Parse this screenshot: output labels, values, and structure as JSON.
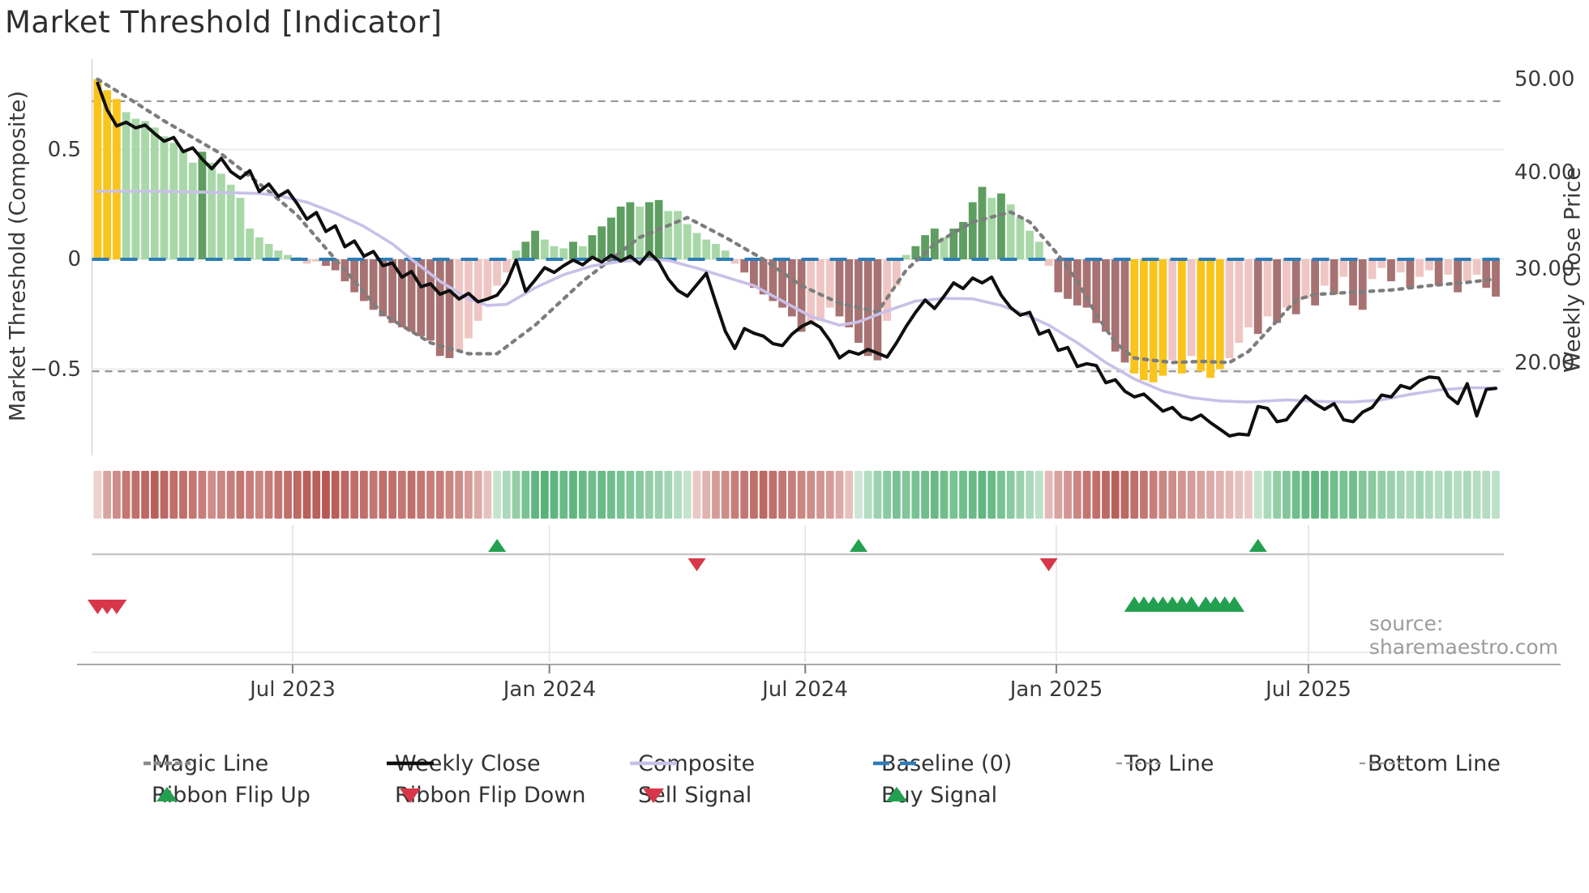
{
  "title": "Market Threshold [Indicator]",
  "source": "source: sharemaestro.com",
  "colors": {
    "bar_gold": "#FAC41B",
    "bar_green_light": "#A9D8A8",
    "bar_green_dark": "#5F9E61",
    "bar_red_light": "#EFC6C3",
    "bar_red_dark": "#A87272",
    "weekly_close": "#0f0f0f",
    "composite_line": "#C9C0E8",
    "magic_line": "#7d7d7d",
    "baseline": "#2E7DB6",
    "threshold_dash": "#999999",
    "grid": "#ebebeb",
    "spine": "#d6d6d6",
    "flip_line": "#c8c8c8",
    "separator": "#e6e6e6",
    "axis_line": "#a9a9a9",
    "signal_grid": "#e4e4e4",
    "marker_green": "#22A050",
    "marker_red": "#D8374A",
    "ribbon_red_light": "#F7E7E5",
    "ribbon_red_dark": "#B3514C",
    "ribbon_green_light": "#E6F4E8",
    "ribbon_green_dark": "#3FA766"
  },
  "axes": {
    "left": {
      "title": "Market Threshold (Composite)",
      "ticks": [
        {
          "value": 0.5,
          "label": "0.5"
        },
        {
          "value": 0.0,
          "label": "0"
        },
        {
          "value": -0.5,
          "label": "−0.5"
        }
      ]
    },
    "right": {
      "title": "Weekly Close Price",
      "ticks": [
        {
          "value": 50,
          "label": "50.00"
        },
        {
          "value": 40,
          "label": "40.00"
        },
        {
          "value": 30,
          "label": "30.00"
        },
        {
          "value": 20,
          "label": "20.00"
        }
      ]
    },
    "x": {
      "ticks": [
        {
          "i": 20.5,
          "label": "Jul 2023"
        },
        {
          "i": 47.5,
          "label": "Jan 2024"
        },
        {
          "i": 74.4,
          "label": "Jul 2024"
        },
        {
          "i": 100.8,
          "label": "Jan 2025"
        },
        {
          "i": 127.3,
          "label": "Jul 2025"
        }
      ]
    }
  },
  "chart_data": {
    "type": "bar+line composite indicator panel",
    "x_unit": "week index (0 = first bar, ~Feb 2023; 148 weekly bars to ~Nov 2025)",
    "left_ylim": [
      -0.92,
      0.92
    ],
    "right_ylim_prices": [
      50,
      20
    ],
    "baseline": 0,
    "top_line": 0.72,
    "bottom_line": -0.51,
    "gold_above": 0.72,
    "gold_below": -0.49,
    "composite_histogram": [
      0.82,
      0.77,
      0.73,
      0.67,
      0.64,
      0.63,
      0.6,
      0.56,
      0.53,
      0.5,
      0.44,
      0.49,
      0.44,
      0.39,
      0.34,
      0.28,
      0.14,
      0.1,
      0.07,
      0.04,
      0.02,
      0.01,
      -0.02,
      -0.01,
      -0.03,
      -0.05,
      -0.1,
      -0.15,
      -0.19,
      -0.23,
      -0.26,
      -0.29,
      -0.31,
      -0.33,
      -0.35,
      -0.37,
      -0.44,
      -0.45,
      -0.42,
      -0.36,
      -0.28,
      -0.18,
      -0.12,
      -0.06,
      0.04,
      0.08,
      0.13,
      0.09,
      0.06,
      0.05,
      0.08,
      0.06,
      0.11,
      0.15,
      0.19,
      0.24,
      0.26,
      0.24,
      0.26,
      0.27,
      0.22,
      0.22,
      0.16,
      0.12,
      0.09,
      0.07,
      0.04,
      -0.02,
      -0.06,
      -0.13,
      -0.16,
      -0.19,
      -0.22,
      -0.26,
      -0.33,
      -0.3,
      -0.28,
      -0.22,
      -0.26,
      -0.31,
      -0.38,
      -0.44,
      -0.46,
      -0.28,
      -0.12,
      0.02,
      0.06,
      0.11,
      0.14,
      0.1,
      0.14,
      0.17,
      0.26,
      0.33,
      0.28,
      0.3,
      0.25,
      0.19,
      0.13,
      0.08,
      -0.03,
      -0.15,
      -0.18,
      -0.21,
      -0.22,
      -0.29,
      -0.33,
      -0.42,
      -0.47,
      -0.52,
      -0.55,
      -0.56,
      -0.53,
      -0.46,
      -0.52,
      -0.44,
      -0.51,
      -0.54,
      -0.5,
      -0.45,
      -0.38,
      -0.31,
      -0.34,
      -0.26,
      -0.29,
      -0.22,
      -0.25,
      -0.18,
      -0.21,
      -0.12,
      -0.16,
      -0.08,
      -0.21,
      -0.23,
      -0.09,
      -0.04,
      -0.1,
      -0.06,
      -0.13,
      -0.08,
      -0.05,
      -0.12,
      -0.07,
      -0.15,
      -0.1,
      -0.07,
      -0.13,
      -0.17
    ],
    "weekly_close": [
      49.6,
      46.8,
      45.1,
      45.5,
      44.9,
      45.2,
      44.3,
      43.5,
      43.9,
      42.4,
      42.8,
      41.6,
      40.6,
      41.7,
      40.3,
      39.6,
      40.4,
      38.2,
      39.0,
      37.7,
      38.3,
      36.9,
      35.3,
      36.0,
      34.0,
      34.6,
      32.4,
      33.0,
      31.4,
      31.9,
      30.4,
      30.7,
      29.2,
      29.8,
      28.2,
      28.5,
      27.4,
      27.8,
      26.9,
      27.5,
      26.6,
      26.9,
      27.3,
      28.6,
      31.0,
      27.7,
      28.9,
      30.2,
      29.7,
      30.4,
      31.0,
      30.5,
      31.3,
      30.8,
      31.5,
      30.9,
      31.4,
      30.6,
      31.8,
      30.8,
      29.0,
      27.8,
      27.2,
      28.4,
      29.6,
      26.5,
      23.5,
      21.7,
      23.8,
      23.3,
      23.0,
      22.2,
      22.0,
      23.2,
      24.0,
      24.5,
      23.9,
      22.5,
      20.7,
      21.4,
      21.1,
      21.6,
      21.2,
      20.8,
      22.3,
      24.0,
      25.5,
      26.8,
      25.9,
      27.2,
      28.6,
      28.0,
      29.1,
      28.6,
      29.2,
      27.3,
      26.0,
      25.2,
      25.5,
      23.2,
      23.6,
      21.5,
      21.8,
      19.8,
      20.1,
      19.9,
      18.1,
      18.4,
      17.2,
      16.6,
      16.9,
      16.0,
      15.1,
      15.5,
      14.5,
      14.2,
      14.7,
      13.9,
      13.2,
      12.5,
      12.7,
      12.6,
      15.6,
      15.4,
      14.0,
      14.2,
      15.5,
      16.7,
      15.9,
      15.3,
      15.9,
      14.2,
      14.0,
      15.0,
      15.5,
      16.8,
      16.6,
      17.8,
      17.5,
      18.3,
      18.7,
      18.6,
      16.7,
      15.9,
      18.0,
      14.6,
      17.4,
      17.5
    ],
    "composite_line_keyframes": [
      [
        0,
        0.31
      ],
      [
        6,
        0.31
      ],
      [
        12,
        0.305
      ],
      [
        17,
        0.3
      ],
      [
        19,
        0.29
      ],
      [
        22,
        0.26
      ],
      [
        25,
        0.21
      ],
      [
        28,
        0.15
      ],
      [
        31,
        0.07
      ],
      [
        33,
        0.0
      ],
      [
        36,
        -0.1
      ],
      [
        39,
        -0.18
      ],
      [
        41,
        -0.21
      ],
      [
        43,
        -0.205
      ],
      [
        46,
        -0.13
      ],
      [
        49,
        -0.07
      ],
      [
        52,
        -0.03
      ],
      [
        55,
        -0.01
      ],
      [
        58,
        0.0
      ],
      [
        60,
        -0.005
      ],
      [
        63,
        -0.04
      ],
      [
        66,
        -0.08
      ],
      [
        69,
        -0.12
      ],
      [
        72,
        -0.19
      ],
      [
        75,
        -0.26
      ],
      [
        78,
        -0.3
      ],
      [
        80,
        -0.285
      ],
      [
        83,
        -0.235
      ],
      [
        86,
        -0.19
      ],
      [
        89,
        -0.178
      ],
      [
        92,
        -0.18
      ],
      [
        95,
        -0.21
      ],
      [
        98,
        -0.26
      ],
      [
        100,
        -0.3
      ],
      [
        103,
        -0.38
      ],
      [
        106,
        -0.47
      ],
      [
        109,
        -0.545
      ],
      [
        112,
        -0.6
      ],
      [
        115,
        -0.63
      ],
      [
        118,
        -0.645
      ],
      [
        121,
        -0.65
      ],
      [
        125,
        -0.64
      ],
      [
        129,
        -0.648
      ],
      [
        132,
        -0.65
      ],
      [
        135,
        -0.64
      ],
      [
        138,
        -0.615
      ],
      [
        141,
        -0.595
      ],
      [
        144,
        -0.585
      ],
      [
        147,
        -0.585
      ]
    ],
    "magic_line_keyframes": [
      [
        0,
        0.82
      ],
      [
        3,
        0.74
      ],
      [
        7,
        0.63
      ],
      [
        13,
        0.48
      ],
      [
        18,
        0.31
      ],
      [
        21,
        0.2
      ],
      [
        25,
        0.0
      ],
      [
        30,
        -0.25
      ],
      [
        35,
        -0.38
      ],
      [
        39,
        -0.43
      ],
      [
        42,
        -0.43
      ],
      [
        46,
        -0.3
      ],
      [
        51,
        -0.1
      ],
      [
        54,
        0.0
      ],
      [
        57,
        0.1
      ],
      [
        62,
        0.19
      ],
      [
        66,
        0.1
      ],
      [
        70,
        0.0
      ],
      [
        74,
        -0.12
      ],
      [
        78,
        -0.2
      ],
      [
        82,
        -0.24
      ],
      [
        85,
        -0.05
      ],
      [
        88,
        0.07
      ],
      [
        92,
        0.17
      ],
      [
        96,
        0.215
      ],
      [
        98,
        0.17
      ],
      [
        101,
        0.02
      ],
      [
        103,
        -0.1
      ],
      [
        105,
        -0.25
      ],
      [
        107,
        -0.38
      ],
      [
        109,
        -0.45
      ],
      [
        113,
        -0.47
      ],
      [
        116,
        -0.465
      ],
      [
        119,
        -0.47
      ],
      [
        121,
        -0.42
      ],
      [
        124,
        -0.28
      ],
      [
        126,
        -0.185
      ],
      [
        128,
        -0.16
      ],
      [
        132,
        -0.15
      ],
      [
        136,
        -0.14
      ],
      [
        140,
        -0.12
      ],
      [
        144,
        -0.105
      ],
      [
        147,
        -0.09
      ]
    ],
    "ribbon": [
      -0.15,
      -0.45,
      -0.6,
      -0.75,
      -0.8,
      -0.85,
      -0.9,
      -0.85,
      -0.8,
      -0.8,
      -0.75,
      -0.7,
      -0.6,
      -0.65,
      -0.7,
      -0.75,
      -0.7,
      -0.65,
      -0.7,
      -0.75,
      -0.8,
      -0.85,
      -0.9,
      -0.9,
      -0.95,
      -0.9,
      -0.85,
      -0.8,
      -0.8,
      -0.75,
      -0.8,
      -0.8,
      -0.75,
      -0.8,
      -0.75,
      -0.7,
      -0.7,
      -0.65,
      -0.6,
      -0.5,
      -0.4,
      -0.25,
      0.2,
      0.35,
      0.5,
      0.65,
      0.8,
      0.85,
      0.8,
      0.75,
      0.8,
      0.75,
      0.7,
      0.75,
      0.7,
      0.65,
      0.6,
      0.55,
      0.5,
      0.45,
      0.4,
      0.3,
      0.2,
      -0.2,
      -0.35,
      -0.5,
      -0.6,
      -0.7,
      -0.75,
      -0.8,
      -0.85,
      -0.8,
      -0.75,
      -0.7,
      -0.65,
      -0.6,
      -0.55,
      -0.5,
      -0.4,
      -0.25,
      0.15,
      0.3,
      0.45,
      0.55,
      0.65,
      0.6,
      0.65,
      0.7,
      0.75,
      0.7,
      0.65,
      0.7,
      0.75,
      0.8,
      0.75,
      0.65,
      0.55,
      0.45,
      0.35,
      0.25,
      -0.3,
      -0.45,
      -0.55,
      -0.65,
      -0.75,
      -0.8,
      -0.85,
      -0.9,
      -0.85,
      -0.8,
      -0.75,
      -0.7,
      -0.65,
      -0.6,
      -0.55,
      -0.5,
      -0.45,
      -0.4,
      -0.35,
      -0.3,
      -0.25,
      -0.2,
      0.2,
      0.35,
      0.5,
      0.6,
      0.7,
      0.75,
      0.8,
      0.75,
      0.7,
      0.65,
      0.7,
      0.6,
      0.55,
      0.5,
      0.45,
      0.4,
      0.35,
      0.4,
      0.35,
      0.3,
      0.35,
      0.3,
      0.35,
      0.3,
      0.3,
      0.25
    ],
    "ribbon_flips": [
      {
        "i": 42,
        "dir": "up"
      },
      {
        "i": 63,
        "dir": "down"
      },
      {
        "i": 80,
        "dir": "up"
      },
      {
        "i": 100,
        "dir": "down"
      },
      {
        "i": 122,
        "dir": "up"
      }
    ],
    "sell_signals": [
      0,
      1,
      2
    ],
    "buy_signals": [
      109,
      110,
      111,
      112,
      113,
      114,
      115,
      116,
      117,
      118,
      119
    ]
  },
  "legend": {
    "items": [
      {
        "row": 0,
        "col": 0,
        "type": "dash-dots",
        "color": "#8a8a8a",
        "label": "Magic Line"
      },
      {
        "row": 0,
        "col": 1,
        "type": "solid",
        "color": "#0f0f0f",
        "label": "Weekly Close"
      },
      {
        "row": 0,
        "col": 2,
        "type": "solid",
        "color": "#C9C0E8",
        "label": "Composite"
      },
      {
        "row": 0,
        "col": 3,
        "type": "dash-long",
        "color": "#2E7DB6",
        "label": "Baseline (0)"
      },
      {
        "row": 0,
        "col": 4,
        "type": "dash-small",
        "color": "#9a9a9a",
        "label": "Top Line"
      },
      {
        "row": 0,
        "col": 5,
        "type": "dash-small",
        "color": "#9a9a9a",
        "label": "Bottom Line"
      },
      {
        "row": 1,
        "col": 0,
        "type": "tri-up",
        "color": "#22A050",
        "label": "Ribbon Flip Up"
      },
      {
        "row": 1,
        "col": 1,
        "type": "tri-down",
        "color": "#D8374A",
        "label": "Ribbon Flip Down"
      },
      {
        "row": 1,
        "col": 2,
        "type": "tri-down",
        "color": "#D8374A",
        "label": "Sell Signal"
      },
      {
        "row": 1,
        "col": 3,
        "type": "tri-up",
        "color": "#22A050",
        "label": "Buy Signal"
      }
    ]
  }
}
